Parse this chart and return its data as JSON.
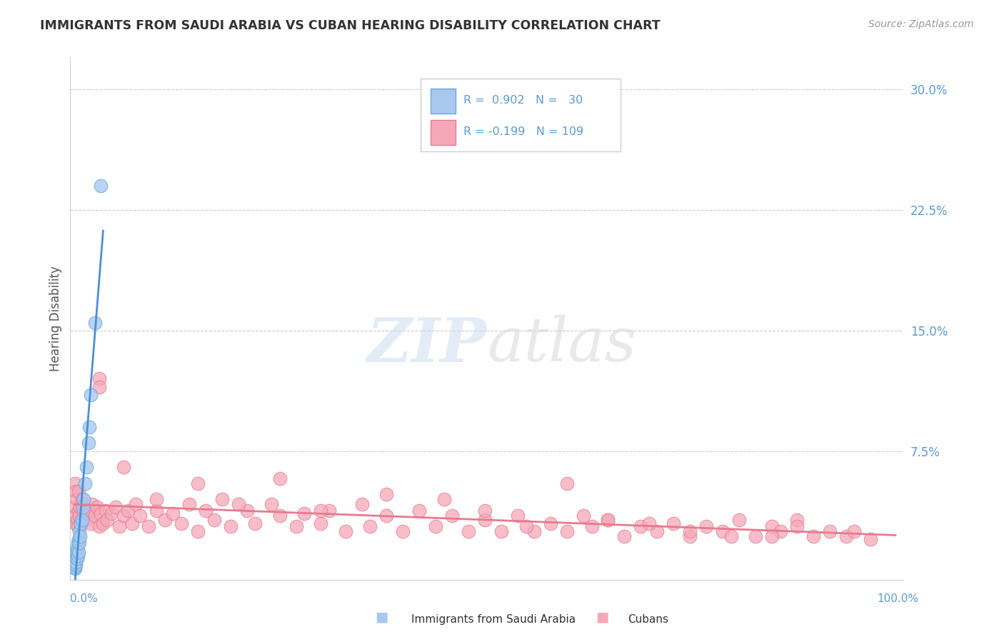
{
  "title": "IMMIGRANTS FROM SAUDI ARABIA VS CUBAN HEARING DISABILITY CORRELATION CHART",
  "source": "Source: ZipAtlas.com",
  "ylabel": "Hearing Disability",
  "y_ticks": [
    0.0,
    0.075,
    0.15,
    0.225,
    0.3
  ],
  "y_tick_labels": [
    "",
    "7.5%",
    "15.0%",
    "22.5%",
    "30.0%"
  ],
  "legend1_color": "#a8c8f0",
  "legend2_color": "#f5a8b8",
  "line1_color": "#4a90d9",
  "line2_color": "#e87a90",
  "scatter1_color": "#a8c8f0",
  "scatter2_color": "#f5a8b8",
  "scatter1_edge": "#6aaad4",
  "scatter2_edge": "#e87a90",
  "tick_color": "#5b9bd5",
  "background_color": "#ffffff",
  "title_color": "#333333",
  "source_color": "#999999",
  "ylabel_color": "#555555",
  "grid_color": "#cccccc",
  "xlim": [
    -0.005,
    1.01
  ],
  "ylim": [
    -0.005,
    0.32
  ],
  "saudi_x": [
    0.0005,
    0.001,
    0.001,
    0.001,
    0.001,
    0.0015,
    0.002,
    0.002,
    0.002,
    0.003,
    0.003,
    0.003,
    0.004,
    0.004,
    0.005,
    0.005,
    0.006,
    0.006,
    0.007,
    0.008,
    0.009,
    0.01,
    0.011,
    0.013,
    0.015,
    0.017,
    0.018,
    0.02,
    0.025,
    0.032
  ],
  "saudi_y": [
    0.002,
    0.003,
    0.005,
    0.008,
    0.01,
    0.004,
    0.006,
    0.009,
    0.012,
    0.008,
    0.012,
    0.015,
    0.01,
    0.018,
    0.012,
    0.02,
    0.018,
    0.025,
    0.022,
    0.03,
    0.032,
    0.04,
    0.045,
    0.055,
    0.065,
    0.08,
    0.09,
    0.11,
    0.155,
    0.24
  ],
  "cuban_x": [
    0.0005,
    0.001,
    0.001,
    0.002,
    0.002,
    0.003,
    0.003,
    0.004,
    0.005,
    0.005,
    0.006,
    0.007,
    0.008,
    0.009,
    0.01,
    0.012,
    0.014,
    0.016,
    0.018,
    0.02,
    0.022,
    0.025,
    0.028,
    0.03,
    0.032,
    0.035,
    0.038,
    0.04,
    0.045,
    0.05,
    0.055,
    0.06,
    0.065,
    0.07,
    0.075,
    0.08,
    0.09,
    0.1,
    0.11,
    0.12,
    0.13,
    0.14,
    0.15,
    0.16,
    0.17,
    0.18,
    0.19,
    0.21,
    0.22,
    0.24,
    0.25,
    0.27,
    0.28,
    0.3,
    0.31,
    0.33,
    0.35,
    0.36,
    0.38,
    0.4,
    0.42,
    0.44,
    0.46,
    0.48,
    0.5,
    0.52,
    0.54,
    0.56,
    0.58,
    0.6,
    0.62,
    0.63,
    0.65,
    0.67,
    0.69,
    0.71,
    0.73,
    0.75,
    0.77,
    0.79,
    0.81,
    0.83,
    0.85,
    0.86,
    0.88,
    0.9,
    0.92,
    0.94,
    0.95,
    0.97,
    0.03,
    0.03,
    0.06,
    0.25,
    0.45,
    0.6,
    0.75,
    0.88,
    0.15,
    0.38,
    0.5,
    0.65,
    0.8,
    0.1,
    0.3,
    0.55,
    0.7,
    0.85,
    0.2
  ],
  "cuban_y": [
    0.04,
    0.035,
    0.055,
    0.03,
    0.05,
    0.032,
    0.045,
    0.028,
    0.038,
    0.05,
    0.035,
    0.04,
    0.03,
    0.045,
    0.038,
    0.042,
    0.032,
    0.036,
    0.038,
    0.03,
    0.042,
    0.035,
    0.04,
    0.028,
    0.036,
    0.03,
    0.038,
    0.032,
    0.036,
    0.04,
    0.028,
    0.035,
    0.038,
    0.03,
    0.042,
    0.035,
    0.028,
    0.038,
    0.032,
    0.036,
    0.03,
    0.042,
    0.025,
    0.038,
    0.032,
    0.045,
    0.028,
    0.038,
    0.03,
    0.042,
    0.035,
    0.028,
    0.036,
    0.03,
    0.038,
    0.025,
    0.042,
    0.028,
    0.035,
    0.025,
    0.038,
    0.028,
    0.035,
    0.025,
    0.032,
    0.025,
    0.035,
    0.025,
    0.03,
    0.025,
    0.035,
    0.028,
    0.032,
    0.022,
    0.028,
    0.025,
    0.03,
    0.022,
    0.028,
    0.025,
    0.032,
    0.022,
    0.028,
    0.025,
    0.032,
    0.022,
    0.025,
    0.022,
    0.025,
    0.02,
    0.12,
    0.115,
    0.065,
    0.058,
    0.045,
    0.055,
    0.025,
    0.028,
    0.055,
    0.048,
    0.038,
    0.032,
    0.022,
    0.045,
    0.038,
    0.028,
    0.03,
    0.022,
    0.042
  ]
}
